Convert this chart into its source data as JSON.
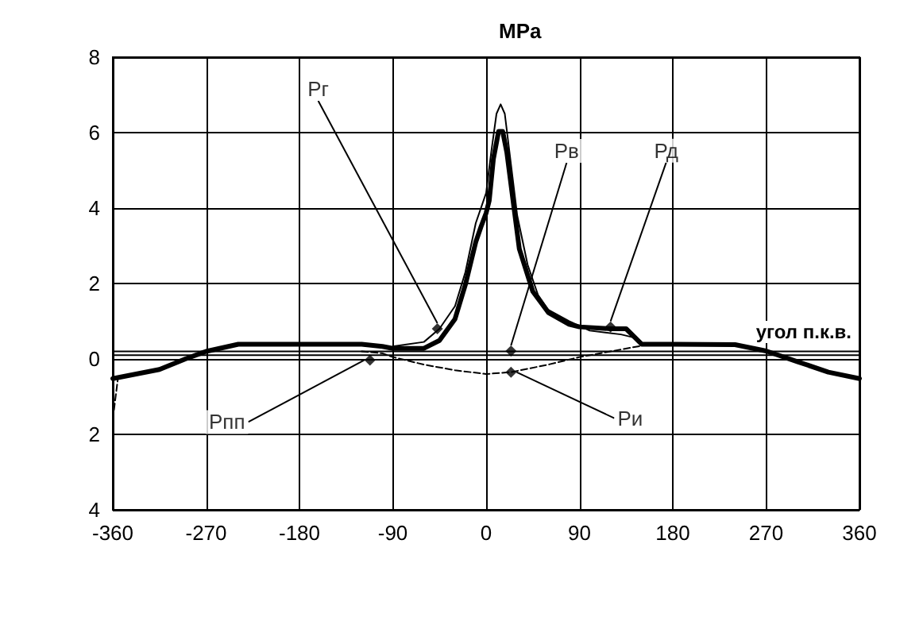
{
  "chart_data": {
    "type": "line",
    "xlabel": "угол п.к.в.",
    "ylabel": "MPa",
    "xlim": [
      -360,
      360
    ],
    "xticks": [
      -360,
      -270,
      -180,
      -90,
      0,
      90,
      180,
      270,
      360
    ],
    "ylim": [
      -4,
      8
    ],
    "yticks": [
      {
        "value": -4,
        "label": "4"
      },
      {
        "value": -2,
        "label": "2"
      },
      0,
      2,
      4,
      6,
      8
    ],
    "grid": true,
    "marker": "none",
    "series": [
      {
        "color": "#000000",
        "line_style": "solid",
        "x": [
          -360,
          -315,
          -290,
          -270,
          -239,
          -180,
          -120,
          -100,
          -90,
          -60,
          -45,
          -30,
          -20,
          -10,
          -5,
          0,
          3,
          7,
          12,
          16,
          20,
          26,
          32,
          45,
          60,
          80,
          90,
          120,
          135,
          150,
          180,
          240,
          270,
          300,
          330,
          360
        ],
        "values": [
          -0.52,
          -0.28,
          0,
          0.2,
          0.39,
          0.39,
          0.39,
          0.33,
          0.28,
          0.28,
          0.49,
          1.06,
          1.97,
          3.1,
          3.5,
          3.87,
          4.2,
          5.3,
          6.03,
          6.03,
          5.47,
          4.19,
          2.92,
          1.79,
          1.23,
          0.92,
          0.85,
          0.8,
          0.8,
          0.39,
          0.39,
          0.38,
          0.21,
          -0.07,
          -0.35,
          -0.52
        ]
      },
      {
        "color": "#000000",
        "line_style": "solid",
        "x": [
          -90,
          -60,
          -45,
          -30,
          -20,
          -10,
          0,
          5,
          10,
          14,
          18,
          22,
          30,
          40,
          50,
          60,
          80,
          100,
          130,
          145,
          150
        ],
        "values": [
          0.33,
          0.45,
          0.8,
          1.4,
          2.3,
          3.6,
          4.4,
          5.5,
          6.5,
          6.75,
          6.5,
          5.6,
          3.8,
          2.5,
          1.7,
          1.3,
          1.0,
          0.75,
          0.65,
          0.55,
          0.4
        ]
      },
      {
        "color": "#000000",
        "line_style": "dashed",
        "x": [
          -360,
          -355,
          -300,
          -120,
          -100,
          -90,
          -60,
          -30,
          0,
          24,
          60,
          90,
          120,
          150
        ],
        "values": [
          -1.6,
          -0.5,
          null,
          0.2,
          0.15,
          0.05,
          -0.15,
          -0.3,
          -0.4,
          -0.35,
          -0.15,
          0.05,
          0.2,
          0.35
        ]
      }
    ],
    "ref_lines": [
      {
        "axis": "y",
        "value": 0.1,
        "color": "#000000"
      },
      {
        "axis": "y",
        "value": 0.2,
        "color": "#000000"
      }
    ],
    "annotations": [
      {
        "text": "Рг",
        "x": -47,
        "y": 0.8
      },
      {
        "text": "Рпп",
        "x": -112,
        "y": -0.03
      },
      {
        "text": "Рв",
        "x": 24,
        "y": 0.21
      },
      {
        "text": "Ри",
        "x": 24,
        "y": -0.35
      },
      {
        "text": "Рд",
        "x": 120,
        "y": 0.85
      }
    ]
  }
}
